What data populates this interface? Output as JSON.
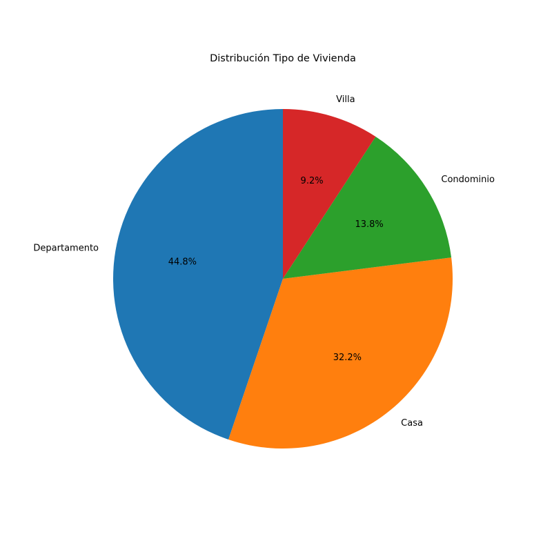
{
  "chart_data": {
    "type": "pie",
    "title": "Distribución Tipo de Vivienda",
    "start_angle_deg": 90,
    "direction": "counterclockwise",
    "slices": [
      {
        "label": "Departamento",
        "value": 44.8,
        "pct_label": "44.8%",
        "color": "#1f77b4"
      },
      {
        "label": "Casa",
        "value": 32.2,
        "pct_label": "32.2%",
        "color": "#ff7f0e"
      },
      {
        "label": "Condominio",
        "value": 13.8,
        "pct_label": "13.8%",
        "color": "#2ca02c"
      },
      {
        "label": "Villa",
        "value": 9.2,
        "pct_label": "9.2%",
        "color": "#d62728"
      }
    ]
  }
}
